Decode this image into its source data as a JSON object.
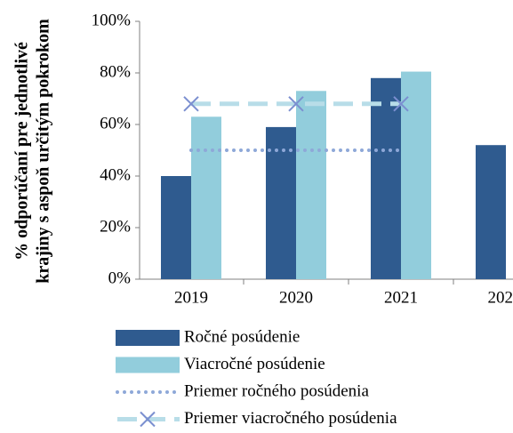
{
  "chart_data": {
    "type": "bar",
    "ylabel": [
      "% odporúčaní pre jednotlivé",
      "krajiny s aspoň určitým pokrokom"
    ],
    "categories": [
      "2019",
      "2020",
      "2021",
      "202"
    ],
    "series": [
      {
        "name": "Ročné posúdenie",
        "type": "bar",
        "color": "#2f5b8f",
        "values": [
          40,
          59,
          78,
          52
        ]
      },
      {
        "name": "Viacročné posúdenie",
        "type": "bar",
        "color": "#92cddc",
        "values": [
          63,
          73,
          80.5,
          null
        ]
      },
      {
        "name": "Priemer ročného posúdenia",
        "type": "line",
        "style": "dotted",
        "color": "#8ea8d8",
        "values": [
          50,
          50,
          50,
          null
        ]
      },
      {
        "name": "Priemer viacročného posúdenia",
        "type": "line",
        "style": "dashed",
        "marker": "x",
        "color": "#b8dde8",
        "marker_color": "#7b8fd0",
        "values": [
          68,
          68,
          68,
          null
        ]
      }
    ],
    "ylim": [
      0,
      100
    ],
    "yticks": [
      {
        "value": 0,
        "label": "0%"
      },
      {
        "value": 20,
        "label": "20%"
      },
      {
        "value": 40,
        "label": "40%"
      },
      {
        "value": 60,
        "label": "60%"
      },
      {
        "value": 80,
        "label": "80%"
      },
      {
        "value": 100,
        "label": "100%"
      }
    ],
    "grid": false,
    "legend": "bottom"
  }
}
